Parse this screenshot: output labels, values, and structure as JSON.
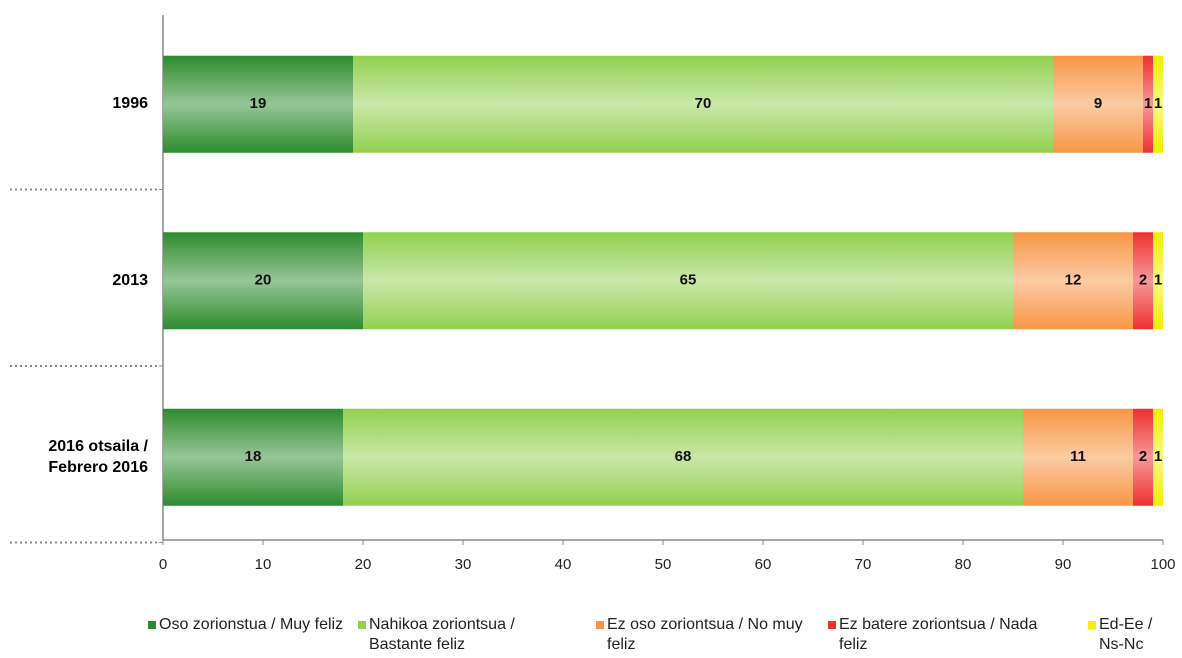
{
  "chart_data": {
    "type": "stacked-barh",
    "categories": [
      "1996",
      "2013",
      "2016 otsaila / Febrero 2016"
    ],
    "series": [
      {
        "name": "Oso zorionstua / Muy feliz",
        "color": "#2e8b2e",
        "values": [
          19,
          20,
          18
        ]
      },
      {
        "name": "Nahikoa zoriontsua / Bastante feliz",
        "color": "#92d050",
        "values": [
          70,
          65,
          68
        ]
      },
      {
        "name": "Ez oso zoriontsua / No muy feliz",
        "color": "#f79646",
        "values": [
          9,
          12,
          11
        ]
      },
      {
        "name": "Ez batere zoriontsua / Nada feliz",
        "color": "#ee3030",
        "values": [
          1,
          2,
          2
        ]
      },
      {
        "name": "Ed-Ee / Ns-Nc",
        "color": "#f0f000",
        "values": [
          1,
          1,
          1
        ]
      }
    ],
    "xlim": [
      0,
      100
    ],
    "xticks": [
      0,
      10,
      20,
      30,
      40,
      50,
      60,
      70,
      80,
      90,
      100
    ],
    "legend": "bottom"
  }
}
